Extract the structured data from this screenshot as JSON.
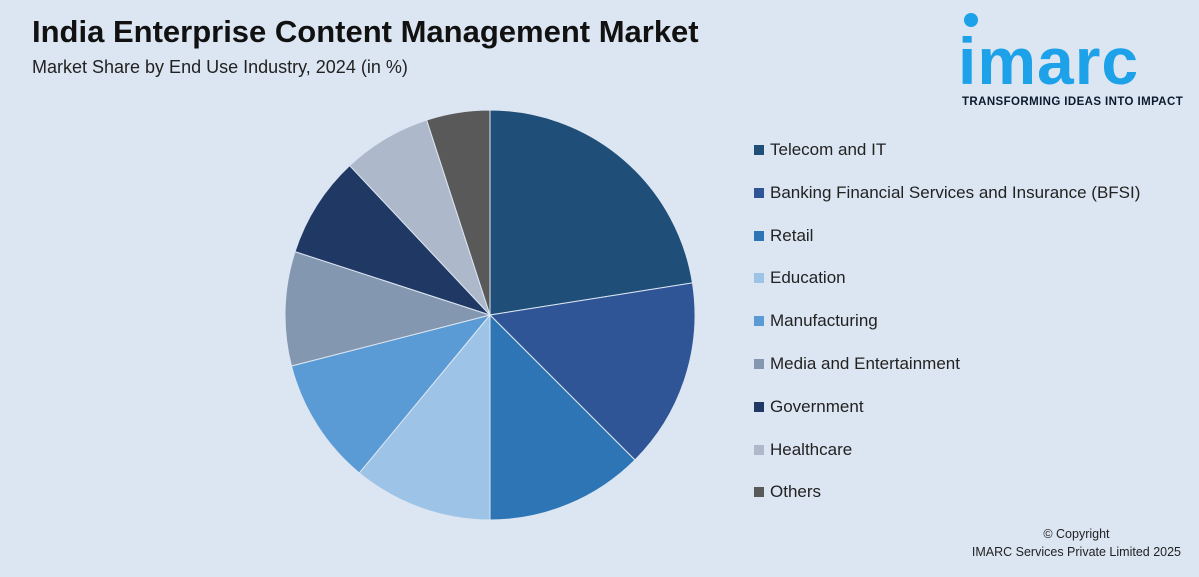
{
  "header": {
    "title": "India Enterprise Content Management Market",
    "subtitle": "Market Share by End Use Industry, 2024 (in %)"
  },
  "logo": {
    "text": "imarc",
    "tagline": "TRANSFORMING IDEAS INTO IMPACT",
    "color": "#1da1e8"
  },
  "chart_data": {
    "type": "pie",
    "title": "India Enterprise Content Management Market",
    "subtitle": "Market Share by End Use Industry, 2024 (in %)",
    "legend_position": "right",
    "slices": [
      {
        "label": "Telecom and IT",
        "value": 22.5,
        "color": "#1f4e79"
      },
      {
        "label": "Banking Financial Services and Insurance (BFSI)",
        "value": 15.0,
        "color": "#2f5597"
      },
      {
        "label": "Retail",
        "value": 12.5,
        "color": "#2e75b6"
      },
      {
        "label": "Education",
        "value": 11.0,
        "color": "#9dc3e6"
      },
      {
        "label": "Manufacturing",
        "value": 10.0,
        "color": "#5b9bd5"
      },
      {
        "label": "Media and Entertainment",
        "value": 9.0,
        "color": "#8497b0"
      },
      {
        "label": "Government",
        "value": 8.0,
        "color": "#203864"
      },
      {
        "label": "Healthcare",
        "value": 7.0,
        "color": "#adb9ca"
      },
      {
        "label": "Others",
        "value": 5.0,
        "color": "#595959"
      }
    ]
  },
  "footer": {
    "copyright_line1": "© Copyright",
    "copyright_line2": "IMARC Services Private Limited 2025"
  }
}
